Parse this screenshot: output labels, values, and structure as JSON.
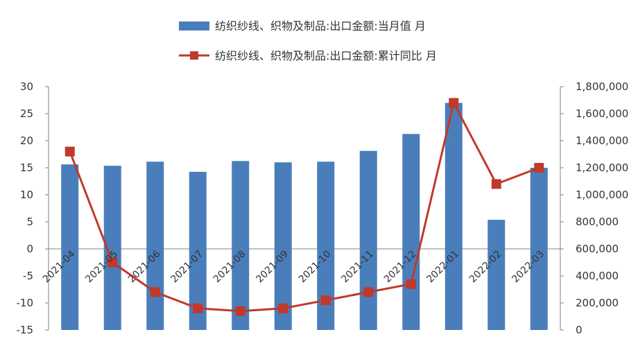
{
  "chart_data": {
    "type": "bar",
    "categories": [
      "2021-04",
      "2021-05",
      "2021-06",
      "2021-07",
      "2021-08",
      "2021-09",
      "2021-10",
      "2021-11",
      "2021-12",
      "2022-01",
      "2022-02",
      "2022-03"
    ],
    "series": [
      {
        "name": "纺织纱线、织物及制品:出口金额:当月值 月",
        "type": "bar",
        "axis": "right",
        "color": "#4a7ebb",
        "values": [
          1225000,
          1215000,
          1245000,
          1170000,
          1250000,
          1240000,
          1245000,
          1325000,
          1450000,
          1680000,
          815000,
          1200000
        ]
      },
      {
        "name": "纺织纱线、织物及制品:出口金额:累计同比 月",
        "type": "line",
        "axis": "left",
        "color": "#c0392b",
        "values": [
          18,
          -2.5,
          -8,
          -11,
          -11.5,
          -11,
          -9.5,
          -8,
          -6.5,
          27,
          12,
          15
        ]
      }
    ],
    "y_left": {
      "ylim": [
        -15,
        30
      ],
      "ticks": [
        "30",
        "25",
        "20",
        "15",
        "10",
        "5",
        "0",
        "-5",
        "-10",
        "-15"
      ]
    },
    "y_right": {
      "ylim": [
        0,
        1800000
      ],
      "ticks": [
        "1,800,000",
        "1,600,000",
        "1,400,000",
        "1,200,000",
        "1,000,000",
        "800,000",
        "600,000",
        "400,000",
        "200,000",
        "0"
      ]
    },
    "grid": false,
    "legend_position": "top-center"
  }
}
